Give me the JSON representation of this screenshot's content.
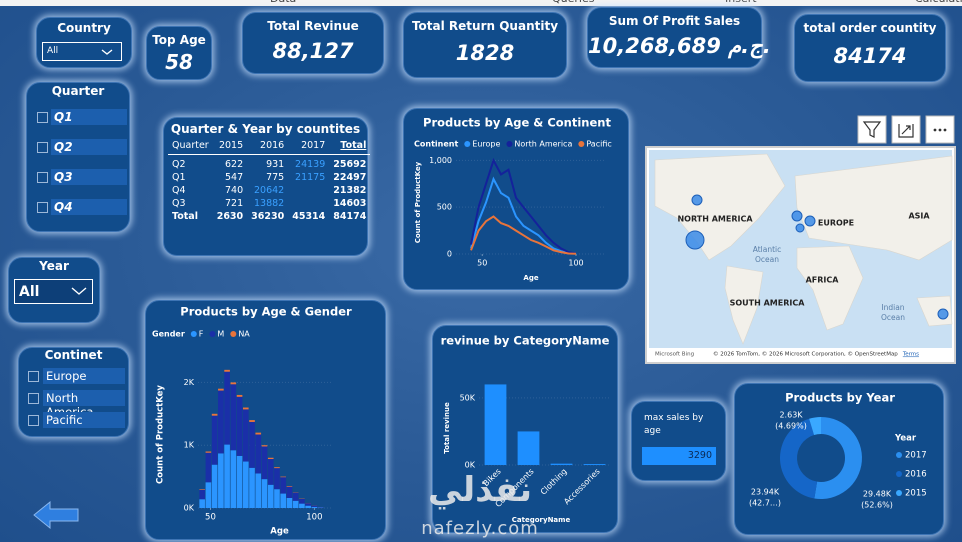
{
  "ribbon": [
    "Data",
    "Queries",
    "Insert",
    "Calculati"
  ],
  "slicers": {
    "country": {
      "title": "Country",
      "value": "All"
    },
    "quarter": {
      "title": "Quarter",
      "options": [
        "Q1",
        "Q2",
        "Q3",
        "Q4"
      ]
    },
    "year": {
      "title": "Year",
      "value": "All"
    },
    "continent": {
      "title": "Continet",
      "options": [
        "Europe",
        "North America",
        "Pacific"
      ]
    }
  },
  "cards": [
    {
      "title": "Top Age",
      "value": "58"
    },
    {
      "title": "Total Revinue",
      "value": "88,127"
    },
    {
      "title": "Total Return Quantity",
      "value": "1828"
    },
    {
      "title": "Sum Of Profit Sales",
      "value": "10,268,689 ج.م."
    },
    {
      "title": "total order countity",
      "value": "84174"
    }
  ],
  "table": {
    "title": "Quarter & Year by countites",
    "header": [
      "Quarter",
      "2015",
      "2016",
      "2017",
      "Total"
    ],
    "rows": [
      [
        "Q2",
        622,
        931,
        24139,
        25692
      ],
      [
        "Q1",
        547,
        775,
        21175,
        22497
      ],
      [
        "Q4",
        740,
        20642,
        null,
        21382
      ],
      [
        "Q3",
        721,
        13882,
        null,
        14603
      ],
      [
        "Total",
        2630,
        36230,
        45314,
        84174
      ]
    ]
  },
  "max_sales": {
    "title": "max sales by age",
    "value": 3290
  },
  "map": {
    "labels": [
      "NORTH AMERICA",
      "EUROPE",
      "ASIA",
      "Atlantic",
      "Ocean",
      "AFRICA",
      "SOUTH AMERICA",
      "Indian",
      "Ocean"
    ],
    "provider": "Microsoft Bing",
    "attribution": "© 2026 TomTom, © 2026 Microsoft Corporation, © OpenStreetMap",
    "terms": "Terms"
  },
  "watermark": {
    "arabic": "نفذلي",
    "latin": "nafezly.com"
  },
  "chart_data": [
    {
      "type": "line",
      "title": "Products by Age & Continent",
      "legend_title": "Continent",
      "x_label": "Age",
      "y_label": "Count of ProductKey",
      "x": [
        44,
        48,
        52,
        56,
        60,
        64,
        68,
        72,
        76,
        80,
        84,
        88,
        92,
        96,
        100
      ],
      "series": [
        {
          "name": "Europe",
          "color": "#2b95ff",
          "values": [
            60,
            350,
            550,
            800,
            650,
            600,
            400,
            300,
            250,
            200,
            120,
            60,
            30,
            10,
            5
          ]
        },
        {
          "name": "North America",
          "color": "#14229a",
          "values": [
            100,
            500,
            750,
            1000,
            850,
            900,
            600,
            500,
            400,
            300,
            200,
            120,
            60,
            20,
            5
          ]
        },
        {
          "name": "Pacific",
          "color": "#e8743b",
          "values": [
            40,
            250,
            350,
            400,
            330,
            300,
            250,
            200,
            150,
            120,
            80,
            40,
            20,
            5,
            2
          ]
        }
      ],
      "xlim": [
        36,
        116
      ],
      "xticks": [
        50,
        100
      ],
      "ylim": [
        0,
        1100
      ],
      "yticks": [
        0,
        500,
        {
          "value": 1000,
          "label": "1,000"
        }
      ]
    },
    {
      "type": "bar",
      "stacked": true,
      "title": "Products by Age & Gender",
      "legend_title": "Gender",
      "x_label": "Age",
      "y_label": "Count of ProductKey",
      "x": [
        46,
        49,
        52,
        55,
        58,
        61,
        64,
        67,
        70,
        73,
        76,
        79,
        82,
        85,
        88,
        91,
        94,
        97,
        100,
        103
      ],
      "series": [
        {
          "name": "F",
          "color": "#2b95ff",
          "values": [
            140,
            410,
            690,
            870,
            1010,
            920,
            830,
            740,
            640,
            550,
            460,
            370,
            300,
            230,
            160,
            115,
            70,
            37,
            18,
            7
          ]
        },
        {
          "name": "M",
          "color": "#1a2fa8",
          "values": [
            150,
            470,
            780,
            1000,
            1160,
            1050,
            940,
            830,
            730,
            620,
            520,
            410,
            335,
            260,
            180,
            130,
            75,
            40,
            20,
            7
          ]
        },
        {
          "name": "NA",
          "color": "#e8743b",
          "values": [
            10,
            20,
            30,
            30,
            30,
            30,
            30,
            30,
            30,
            30,
            20,
            20,
            15,
            10,
            10,
            5,
            5,
            3,
            2,
            1
          ]
        }
      ],
      "xlim": [
        44,
        108
      ],
      "xticks": [
        50,
        100
      ],
      "ylim": [
        0,
        2500
      ],
      "yticks": [
        {
          "value": 0,
          "label": "0K"
        },
        {
          "value": 1000,
          "label": "1K"
        },
        {
          "value": 2000,
          "label": "2K"
        }
      ]
    },
    {
      "type": "bar",
      "title": "revinue by CategoryName",
      "x_label": "CategoryName",
      "y_label": "Total revinue",
      "categories": [
        "Bikes",
        "Components",
        "Clothing",
        "Accessories"
      ],
      "values": [
        60000,
        25000,
        1000,
        700
      ],
      "color": "#1e8fff",
      "ylim": [
        0,
        70000
      ],
      "yticks": [
        {
          "value": 0,
          "label": "0K"
        },
        {
          "value": 50000,
          "label": "50K"
        }
      ]
    },
    {
      "type": "donut",
      "title": "Products by Year",
      "legend_title": "Year",
      "categories": [
        "2017",
        "2016",
        "2015"
      ],
      "values": [
        29.48,
        23.94,
        2.63
      ],
      "value_labels": [
        "29.48K",
        "23.94K",
        "2.63K"
      ],
      "percent_labels": [
        "(52.6%)",
        "(42.7…)",
        "(4.69%)"
      ],
      "colors": [
        "#2b8ff0",
        "#1566c8",
        "#3aa8ff"
      ]
    }
  ]
}
